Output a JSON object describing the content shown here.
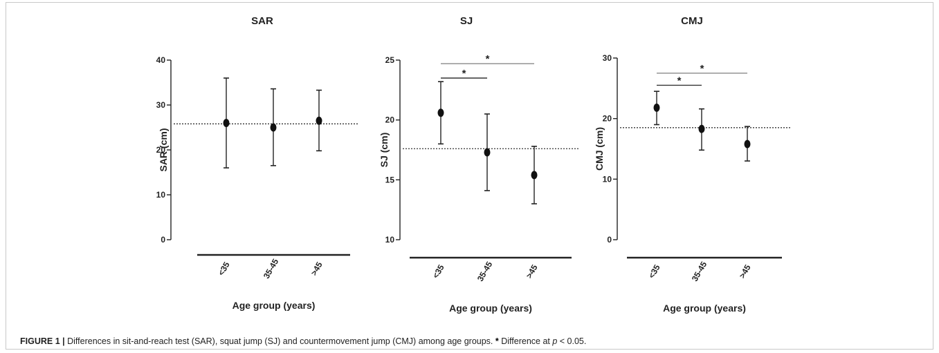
{
  "caption": {
    "label": "FIGURE 1 |",
    "text": " Differences in sit-and-reach test (SAR), squat jump (SJ) and countermovement jump (CMJ) among age groups. ",
    "sig_symbol": "*",
    "sig_text_before": " Difference at ",
    "p_symbol": "p",
    "sig_text_after": " < 0.05."
  },
  "chart_data": [
    {
      "type": "scatter",
      "title": "SAR",
      "xlabel": "Age group (years)",
      "ylabel": "SAR (cm)",
      "categories": [
        "<35",
        "35-45",
        ">45"
      ],
      "ylim": [
        0,
        40
      ],
      "yticks": [
        0,
        10,
        20,
        30,
        40
      ],
      "mean": [
        26,
        25,
        26.5
      ],
      "err_low": [
        16,
        16.5,
        19.8
      ],
      "err_high": [
        36,
        33.6,
        33.3
      ],
      "reference_line": 25.8,
      "significance": []
    },
    {
      "type": "scatter",
      "title": "SJ",
      "xlabel": "Age group (years)",
      "ylabel": "SJ (cm)",
      "categories": [
        "<35",
        "35-45",
        ">45"
      ],
      "ylim": [
        10,
        25
      ],
      "yticks": [
        10,
        15,
        20,
        25
      ],
      "mean": [
        20.6,
        17.3,
        15.4
      ],
      "err_low": [
        18,
        14.1,
        13
      ],
      "err_high": [
        23.2,
        20.5,
        17.8
      ],
      "reference_line": 17.6,
      "significance": [
        {
          "from": "<35",
          "to": "35-45",
          "label": "*",
          "y": 23.5
        },
        {
          "from": "<35",
          "to": ">45",
          "label": "*",
          "y": 24.7
        }
      ]
    },
    {
      "type": "scatter",
      "title": "CMJ",
      "xlabel": "Age group (years)",
      "ylabel": "CMJ (cm)",
      "categories": [
        "<35",
        "35-45",
        ">45"
      ],
      "ylim": [
        0,
        30
      ],
      "yticks": [
        0,
        10,
        20,
        30
      ],
      "mean": [
        21.8,
        18.3,
        15.8
      ],
      "err_low": [
        19,
        14.8,
        13
      ],
      "err_high": [
        24.5,
        21.6,
        18.7
      ],
      "reference_line": 18.5,
      "significance": [
        {
          "from": "<35",
          "to": "35-45",
          "label": "*",
          "y": 25.5
        },
        {
          "from": "<35",
          "to": ">45",
          "label": "*",
          "y": 27.5
        }
      ]
    }
  ]
}
